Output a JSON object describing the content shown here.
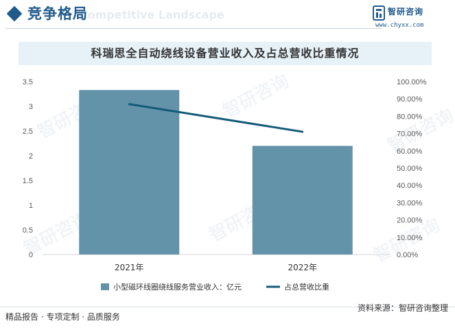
{
  "header": {
    "section_title": "竞争格局",
    "section_subtitle": "Competitive Landscape",
    "brand_name": "智研咨询",
    "brand_url": "www.chyxx.com"
  },
  "chart_data": {
    "type": "bar",
    "title": "科瑞思全自动绕线设备营业收入及占总营收比重情况",
    "categories": [
      "2021年",
      "2022年"
    ],
    "series": [
      {
        "name": "小型磁环线圈绕线服务营业收入：亿元",
        "type": "bar",
        "axis": "left",
        "values": [
          3.33,
          2.2
        ]
      },
      {
        "name": "占总营收比重",
        "type": "line",
        "axis": "right",
        "values": [
          0.87,
          0.71
        ]
      }
    ],
    "y_left": {
      "min": 0,
      "max": 3.5,
      "ticks": [
        "0",
        "0.5",
        "1",
        "1.5",
        "2",
        "2.5",
        "3",
        "3.5"
      ]
    },
    "y_right": {
      "min": 0,
      "max": 1,
      "ticks": [
        "0.00%",
        "10.00%",
        "20.00%",
        "30.00%",
        "40.00%",
        "50.00%",
        "60.00%",
        "70.00%",
        "80.00%",
        "90.00%",
        "100.00%"
      ]
    },
    "grid": false,
    "legend": "bottom",
    "colors": {
      "bar": "#6393a8",
      "line": "#145a78",
      "axis": "#d9d9d9",
      "text": "#595959"
    }
  },
  "footer": {
    "left": "精品报告 · 专项定制 · 品质服务",
    "source": "资料来源：智研咨询整理"
  }
}
